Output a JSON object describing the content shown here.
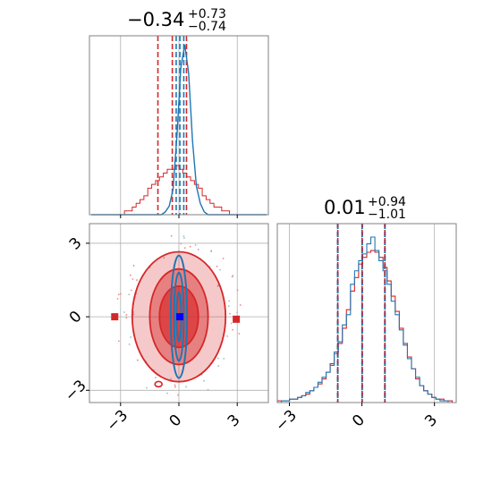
{
  "chart_data": [
    {
      "type": "histogram",
      "panel": "top-left marginal",
      "title_value": "−0.34",
      "title_sup": "+0.73",
      "title_sub": "−0.74",
      "xlim": [
        -4.6,
        4.6
      ],
      "grid": true,
      "series": [
        {
          "color": "#d62728",
          "style": "step",
          "quantiles": [
            -1.08,
            -0.34,
            0.39
          ],
          "values": [
            0,
            0,
            0,
            0,
            0,
            0,
            0,
            0,
            0,
            1,
            1,
            2,
            3,
            4,
            5,
            7,
            8,
            9,
            10,
            11,
            12,
            12,
            13,
            12,
            11,
            10,
            9,
            8,
            7,
            5,
            4,
            3,
            2,
            2,
            1,
            1,
            0,
            0,
            0,
            0,
            0,
            0,
            0,
            0,
            0,
            0
          ]
        },
        {
          "color": "#1f77b4",
          "style": "line",
          "quantiles": [
            -0.14,
            0.05,
            0.25
          ],
          "values": [
            0,
            0,
            0,
            0,
            0,
            0,
            0,
            0,
            0,
            0,
            0,
            0,
            0,
            0,
            0,
            0,
            0,
            0,
            0,
            1,
            3,
            9,
            28,
            52,
            60,
            50,
            26,
            10,
            4,
            1,
            0,
            0,
            0,
            0,
            0,
            0,
            0,
            0,
            0,
            0,
            0,
            0,
            0,
            0,
            0,
            0
          ]
        }
      ]
    },
    {
      "type": "contour",
      "panel": "bottom-left joint",
      "xlim": [
        -4.6,
        4.6
      ],
      "ylim": [
        -3.5,
        3.8
      ],
      "xticks": [
        "−3",
        "0",
        "3"
      ],
      "yticks": [
        "−3",
        "0",
        "3"
      ],
      "grid": true,
      "red_levels": [
        {
          "rx": 2.4,
          "ry": 2.65,
          "opacity": 0.25
        },
        {
          "rx": 1.5,
          "ry": 1.95,
          "opacity": 0.45
        },
        {
          "rx": 1.0,
          "ry": 1.25,
          "opacity": 0.65
        }
      ],
      "blue_levels": [
        {
          "rx": 0.42,
          "ry": 2.5
        },
        {
          "rx": 0.25,
          "ry": 1.8
        },
        {
          "rx": 0.12,
          "ry": 1.0
        }
      ],
      "markers": [
        {
          "x": -3.3,
          "y": 0,
          "color": "#d62728"
        },
        {
          "x": 2.95,
          "y": -0.1,
          "color": "#d62728"
        },
        {
          "x": 0.05,
          "y": 0,
          "color": "#0000ff"
        }
      ]
    },
    {
      "type": "histogram",
      "panel": "bottom-right marginal",
      "title_value": "0.01",
      "title_sup": "+0.94",
      "title_sub": "−1.01",
      "xlim": [
        -3.5,
        3.9
      ],
      "xticks": [
        "−3",
        "0",
        "3"
      ],
      "grid": true,
      "series": [
        {
          "color": "#d62728",
          "quantiles": [
            -1.0,
            0.01,
            0.95
          ],
          "values": [
            1,
            1,
            1,
            2,
            2,
            3,
            4,
            5,
            7,
            9,
            11,
            14,
            18,
            23,
            29,
            35,
            44,
            55,
            66,
            74,
            82,
            86,
            89,
            90,
            89,
            86,
            80,
            72,
            63,
            54,
            44,
            35,
            27,
            20,
            14,
            10,
            7,
            5,
            3,
            2,
            2,
            1,
            1,
            0
          ]
        },
        {
          "color": "#1f77b4",
          "quantiles": [
            -1.0,
            0.01,
            0.95
          ],
          "values": [
            0,
            1,
            1,
            2,
            2,
            3,
            4,
            6,
            7,
            9,
            12,
            15,
            18,
            22,
            30,
            36,
            46,
            52,
            70,
            78,
            84,
            88,
            94,
            98,
            90,
            84,
            78,
            70,
            60,
            52,
            43,
            34,
            26,
            20,
            15,
            10,
            7,
            5,
            3,
            2,
            1,
            1,
            0,
            0
          ]
        }
      ]
    }
  ]
}
